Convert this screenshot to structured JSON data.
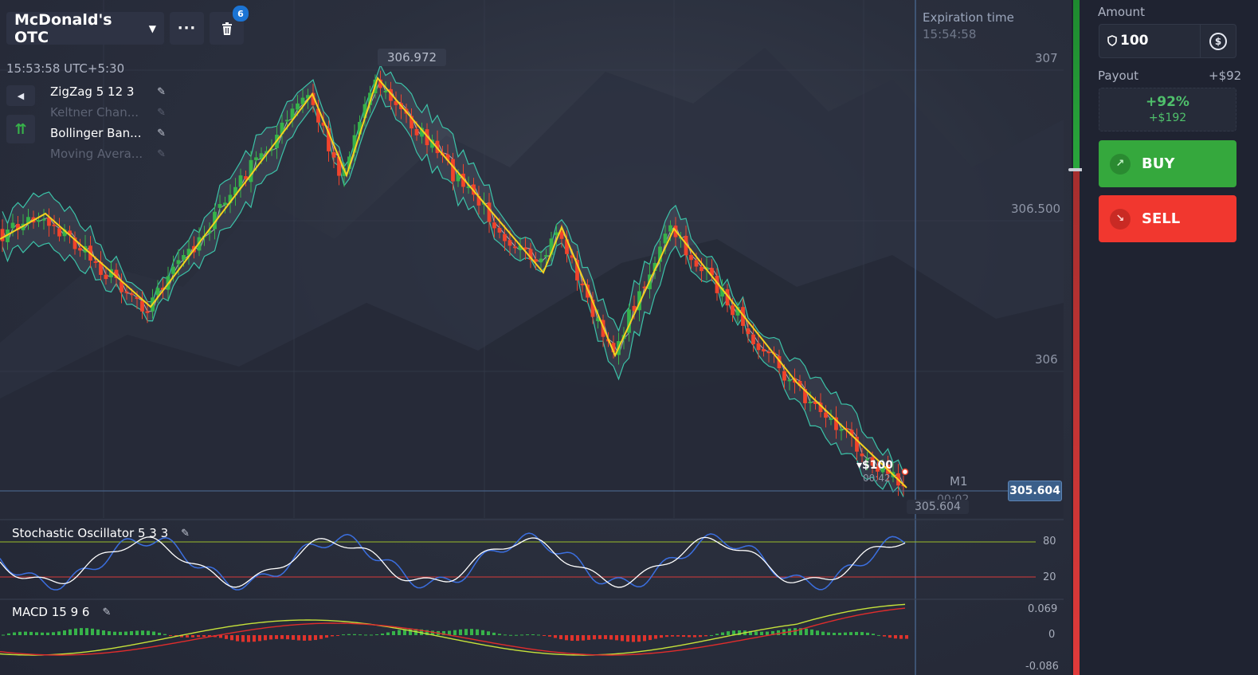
{
  "header": {
    "asset_name": "McDonald's OTC",
    "more_label": "···",
    "trash_badge": "6",
    "clock": "15:53:58 UTC+5:30"
  },
  "indicators": [
    {
      "name": "ZigZag 5 12 3",
      "active": true
    },
    {
      "name": "Keltner Chan...",
      "active": false
    },
    {
      "name": "Bollinger Ban...",
      "active": true
    },
    {
      "name": "Moving Avera...",
      "active": false
    }
  ],
  "chart": {
    "high_tag": "306.972",
    "current_price": "305.604",
    "low_tag": "305.604",
    "price_axis": [
      "307",
      "306.500",
      "306"
    ],
    "expiration_label": "Expiration time",
    "expiration_time": "15:54:58",
    "timeframe": "M1",
    "timeframe_countdown": "00:02",
    "trade_marker": "▾$100",
    "trade_marker_time": "00:42",
    "colors": {
      "up": "#37b34a",
      "down": "#f0442c",
      "zigzag": "#f5d21e",
      "band": "#3bc3a8"
    }
  },
  "stochastic": {
    "title": "Stochastic Oscillator  5 3 3",
    "levels": [
      "80",
      "20"
    ]
  },
  "macd": {
    "title": "MACD  15 9 6",
    "levels": [
      "0.069",
      "0",
      "-0.086"
    ]
  },
  "sidebar": {
    "amount_label": "Amount",
    "amount_value": "100",
    "currency_symbol": "$",
    "payout_label": "Payout",
    "payout_summary": "+$92",
    "payout_percent": "+92%",
    "payout_amount": "+$192",
    "buy_label": "BUY",
    "sell_label": "SELL"
  }
}
